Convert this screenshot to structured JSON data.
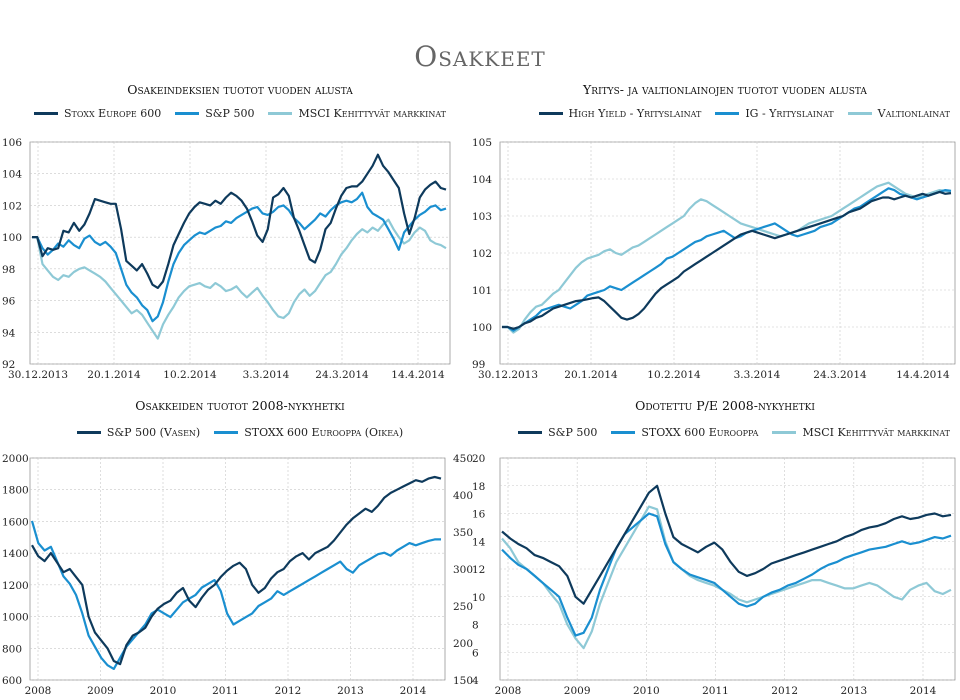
{
  "page_title": "Osakkeet",
  "colors": {
    "dark": "#0e3a5c",
    "mid": "#1a8fd0",
    "light": "#8ec9d6"
  },
  "chart_data": [
    {
      "id": "chart1",
      "type": "line",
      "title": "Osakeindeksien tuotot vuoden alusta",
      "x_labels": [
        "30.12.2013",
        "20.1.2014",
        "10.2.2014",
        "3.3.2014",
        "24.3.2014",
        "14.4.2014"
      ],
      "y_ticks": [
        92,
        94,
        96,
        98,
        100,
        102,
        104,
        106
      ],
      "ylim": [
        92,
        106
      ],
      "x_count": 80,
      "series": [
        {
          "name": "Stoxx Europe 600",
          "color": "#0e3a5c",
          "values": [
            100,
            100,
            98.8,
            99.3,
            99.2,
            99.3,
            100.4,
            100.3,
            100.9,
            100.4,
            100.8,
            101.5,
            102.4,
            102.3,
            102.2,
            102.1,
            102.1,
            100.5,
            98.5,
            98.2,
            97.9,
            98.3,
            97.7,
            97,
            96.8,
            97.2,
            98.3,
            99.5,
            100.2,
            100.9,
            101.5,
            101.9,
            102.2,
            102.1,
            102,
            102.3,
            102.1,
            102.5,
            102.8,
            102.6,
            102.3,
            101.8,
            101,
            100.1,
            99.7,
            100.5,
            102.5,
            102.7,
            103.1,
            102.6,
            101.2,
            100.4,
            99.5,
            98.6,
            98.4,
            99.2,
            100.5,
            100.9,
            101.8,
            102.6,
            103.1,
            103.2,
            103.2,
            103.5,
            104,
            104.5,
            105.2,
            104.5,
            104.1,
            103.6,
            103.1,
            101.5,
            100.2,
            101.2,
            102.5,
            103,
            103.3,
            103.5,
            103.1,
            103
          ]
        },
        {
          "name": "S&P 500",
          "color": "#1a8fd0",
          "values": [
            100,
            100,
            99.3,
            98.9,
            99.2,
            99.6,
            99.4,
            99.8,
            99.5,
            99.3,
            99.9,
            100.1,
            99.7,
            99.5,
            99.7,
            99.4,
            99,
            98,
            97,
            96.5,
            96.2,
            95.7,
            95.4,
            94.7,
            95,
            95.9,
            97.2,
            98.3,
            99,
            99.5,
            99.8,
            100.1,
            100.3,
            100.2,
            100.4,
            100.6,
            100.7,
            101,
            100.9,
            101.2,
            101.4,
            101.6,
            101.8,
            101.9,
            101.5,
            101.4,
            101.6,
            101.9,
            102,
            101.7,
            101.2,
            100.9,
            100.5,
            100.8,
            101.1,
            101.5,
            101.3,
            101.7,
            102,
            102.2,
            102.3,
            102.2,
            102.4,
            102.8,
            101.9,
            101.5,
            101.3,
            101.1,
            100.5,
            99.9,
            99.2,
            100.3,
            100.7,
            101.1,
            101.4,
            101.6,
            101.9,
            102,
            101.7,
            101.8
          ]
        },
        {
          "name": "MSCI Kehittyvät markkinat",
          "color": "#8ec9d6",
          "values": [
            100,
            100,
            98.3,
            97.9,
            97.5,
            97.3,
            97.6,
            97.5,
            97.8,
            98,
            98.1,
            97.9,
            97.7,
            97.5,
            97.2,
            96.8,
            96.4,
            96,
            95.6,
            95.2,
            95.4,
            95.1,
            94.6,
            94.1,
            93.6,
            94.5,
            95.1,
            95.6,
            96.2,
            96.6,
            96.9,
            97,
            97.1,
            96.9,
            96.8,
            97.1,
            96.9,
            96.6,
            96.7,
            96.9,
            96.5,
            96.2,
            96.5,
            96.8,
            96.3,
            95.9,
            95.4,
            95,
            94.9,
            95.2,
            95.9,
            96.4,
            96.7,
            96.3,
            96.6,
            97.1,
            97.6,
            97.8,
            98.3,
            98.9,
            99.3,
            99.8,
            100.2,
            100.5,
            100.3,
            100.6,
            100.4,
            100.8,
            101.1,
            100.5,
            100,
            99.6,
            99.8,
            100.3,
            100.6,
            100.4,
            99.8,
            99.6,
            99.5,
            99.3
          ]
        }
      ]
    },
    {
      "id": "chart2",
      "type": "line",
      "title": "Yritys- ja valtionlainojen tuotot vuoden alusta",
      "x_labels": [
        "30.12.2013",
        "20.1.2014",
        "10.2.2014",
        "3.3.2014",
        "24.3.2014",
        "14.4.2014"
      ],
      "y_ticks": [
        99,
        100,
        101,
        102,
        103,
        104,
        105
      ],
      "ylim": [
        99,
        105
      ],
      "x_count": 80,
      "series": [
        {
          "name": "High Yield - Yrityslainat",
          "color": "#0e3a5c",
          "values": [
            100,
            100,
            99.95,
            100,
            100.1,
            100.15,
            100.25,
            100.3,
            100.4,
            100.5,
            100.55,
            100.6,
            100.65,
            100.7,
            100.72,
            100.75,
            100.78,
            100.8,
            100.7,
            100.55,
            100.4,
            100.25,
            100.2,
            100.25,
            100.35,
            100.5,
            100.7,
            100.9,
            101.05,
            101.15,
            101.25,
            101.35,
            101.5,
            101.6,
            101.7,
            101.8,
            101.9,
            102,
            102.1,
            102.2,
            102.3,
            102.4,
            102.5,
            102.55,
            102.6,
            102.55,
            102.5,
            102.45,
            102.4,
            102.45,
            102.5,
            102.55,
            102.6,
            102.65,
            102.7,
            102.75,
            102.8,
            102.85,
            102.9,
            102.95,
            103,
            103.1,
            103.15,
            103.2,
            103.3,
            103.4,
            103.45,
            103.5,
            103.5,
            103.45,
            103.5,
            103.55,
            103.5,
            103.55,
            103.6,
            103.55,
            103.6,
            103.65,
            103.6,
            103.62
          ]
        },
        {
          "name": "IG - Yrityslainat",
          "color": "#1a8fd0",
          "values": [
            100,
            100,
            99.9,
            100,
            100.1,
            100.2,
            100.3,
            100.45,
            100.5,
            100.55,
            100.6,
            100.55,
            100.5,
            100.6,
            100.7,
            100.85,
            100.9,
            100.95,
            101,
            101.1,
            101.05,
            101,
            101.1,
            101.2,
            101.3,
            101.4,
            101.5,
            101.6,
            101.7,
            101.85,
            101.9,
            102,
            102.1,
            102.2,
            102.3,
            102.35,
            102.45,
            102.5,
            102.55,
            102.6,
            102.5,
            102.4,
            102.45,
            102.55,
            102.6,
            102.65,
            102.7,
            102.75,
            102.8,
            102.7,
            102.6,
            102.5,
            102.45,
            102.5,
            102.55,
            102.6,
            102.7,
            102.75,
            102.8,
            102.9,
            103,
            103.1,
            103.2,
            103.25,
            103.35,
            103.45,
            103.55,
            103.65,
            103.75,
            103.7,
            103.6,
            103.55,
            103.5,
            103.45,
            103.5,
            103.55,
            103.6,
            103.65,
            103.7,
            103.68
          ]
        },
        {
          "name": "Valtionlainat",
          "color": "#8ec9d6",
          "values": [
            100,
            100,
            99.85,
            99.95,
            100.2,
            100.4,
            100.55,
            100.6,
            100.75,
            100.9,
            101,
            101.2,
            101.4,
            101.6,
            101.75,
            101.85,
            101.9,
            101.95,
            102.05,
            102.1,
            102,
            101.95,
            102.05,
            102.15,
            102.2,
            102.3,
            102.4,
            102.5,
            102.6,
            102.7,
            102.8,
            102.9,
            103,
            103.2,
            103.35,
            103.45,
            103.4,
            103.3,
            103.2,
            103.1,
            103,
            102.9,
            102.8,
            102.75,
            102.7,
            102.65,
            102.6,
            102.55,
            102.5,
            102.45,
            102.5,
            102.55,
            102.6,
            102.7,
            102.8,
            102.85,
            102.9,
            102.95,
            103,
            103.1,
            103.2,
            103.3,
            103.4,
            103.5,
            103.6,
            103.7,
            103.8,
            103.85,
            103.9,
            103.8,
            103.7,
            103.6,
            103.55,
            103.5,
            103.55,
            103.6,
            103.65,
            103.7,
            103.68,
            103.66
          ]
        }
      ]
    },
    {
      "id": "chart3",
      "type": "line",
      "title": "Osakkeiden tuotot 2008-nykyhetki",
      "x_labels": [
        "2008",
        "2009",
        "2010",
        "2011",
        "2012",
        "2013",
        "2014"
      ],
      "y_ticks": [
        600,
        800,
        1000,
        1200,
        1400,
        1600,
        1800,
        2000
      ],
      "y2_ticks": [
        150,
        200,
        250,
        300,
        350,
        400,
        450
      ],
      "ylim": [
        600,
        2000
      ],
      "y2lim": [
        150,
        450
      ],
      "x_count": 66,
      "series": [
        {
          "name": "S&P 500 (Vasen)",
          "color": "#0e3a5c",
          "axis": "left",
          "values": [
            1450,
            1380,
            1350,
            1400,
            1340,
            1280,
            1300,
            1250,
            1200,
            1000,
            900,
            850,
            800,
            720,
            700,
            820,
            880,
            900,
            930,
            1000,
            1050,
            1080,
            1100,
            1150,
            1180,
            1100,
            1060,
            1120,
            1170,
            1200,
            1250,
            1290,
            1320,
            1340,
            1300,
            1200,
            1150,
            1180,
            1240,
            1280,
            1300,
            1350,
            1380,
            1400,
            1360,
            1400,
            1420,
            1440,
            1480,
            1530,
            1580,
            1620,
            1650,
            1680,
            1660,
            1700,
            1750,
            1780,
            1800,
            1820,
            1840,
            1860,
            1850,
            1870,
            1880,
            1870
          ]
        },
        {
          "name": "STOXX 600 Eurooppa (Oikea)",
          "color": "#1a8fd0",
          "axis": "right",
          "values": [
            365,
            335,
            325,
            330,
            310,
            290,
            280,
            265,
            240,
            210,
            195,
            180,
            170,
            165,
            180,
            195,
            205,
            215,
            225,
            240,
            245,
            240,
            235,
            245,
            255,
            260,
            265,
            275,
            280,
            285,
            270,
            240,
            225,
            230,
            235,
            240,
            250,
            255,
            260,
            270,
            265,
            270,
            275,
            280,
            285,
            290,
            295,
            300,
            305,
            310,
            300,
            295,
            305,
            310,
            315,
            320,
            322,
            318,
            325,
            330,
            335,
            332,
            335,
            338,
            340,
            340
          ]
        }
      ]
    },
    {
      "id": "chart4",
      "type": "line",
      "title": "Odotettu P/E 2008-nykyhetki",
      "x_labels": [
        "2008",
        "2009",
        "2010",
        "2011",
        "2012",
        "2013",
        "2014"
      ],
      "y_ticks": [
        4,
        6,
        8,
        10,
        12,
        14,
        16,
        18,
        20
      ],
      "ylim": [
        4,
        20
      ],
      "x_count": 56,
      "series": [
        {
          "name": "S&P 500",
          "color": "#0e3a5c",
          "values": [
            14.7,
            14.2,
            13.8,
            13.5,
            13,
            12.8,
            12.5,
            12.2,
            11.5,
            10,
            9.5,
            10.5,
            11.5,
            12.5,
            13.5,
            14.5,
            15.5,
            16.5,
            17.5,
            18,
            16,
            14.3,
            13.8,
            13.5,
            13.2,
            13.6,
            13.9,
            13.4,
            12.5,
            11.8,
            11.5,
            11.7,
            12,
            12.4,
            12.6,
            12.8,
            13,
            13.2,
            13.4,
            13.6,
            13.8,
            14,
            14.3,
            14.5,
            14.8,
            15,
            15.1,
            15.3,
            15.6,
            15.8,
            15.6,
            15.7,
            15.9,
            16,
            15.8,
            15.9
          ]
        },
        {
          "name": "STOXX 600 Eurooppa",
          "color": "#1a8fd0",
          "values": [
            13.4,
            12.8,
            12.3,
            12,
            11.5,
            11,
            10.5,
            10,
            8.5,
            7.2,
            7.4,
            8.5,
            10.5,
            12,
            13.5,
            14.5,
            15,
            15.5,
            16,
            15.8,
            13.8,
            12.5,
            12,
            11.6,
            11.4,
            11.2,
            11,
            10.5,
            10,
            9.5,
            9.3,
            9.5,
            10,
            10.3,
            10.5,
            10.8,
            11,
            11.3,
            11.6,
            12,
            12.3,
            12.5,
            12.8,
            13,
            13.2,
            13.4,
            13.5,
            13.6,
            13.8,
            14,
            13.8,
            13.9,
            14.1,
            14.3,
            14.2,
            14.4
          ]
        },
        {
          "name": "MSCI Kehittyvät markkinat",
          "color": "#8ec9d6",
          "values": [
            14.2,
            13.5,
            12.5,
            12,
            11.5,
            11,
            10.2,
            9.5,
            8,
            7,
            6.3,
            7.5,
            9.5,
            11,
            12.5,
            13.5,
            14.5,
            15.5,
            16.5,
            16.3,
            14,
            12.5,
            12,
            11.5,
            11.2,
            11,
            10.8,
            10.5,
            10.2,
            9.8,
            9.6,
            9.8,
            10,
            10.2,
            10.4,
            10.6,
            10.8,
            11,
            11.2,
            11.2,
            11,
            10.8,
            10.6,
            10.6,
            10.8,
            11,
            10.8,
            10.4,
            10,
            9.8,
            10.5,
            10.8,
            11,
            10.4,
            10.2,
            10.5
          ]
        }
      ]
    }
  ]
}
